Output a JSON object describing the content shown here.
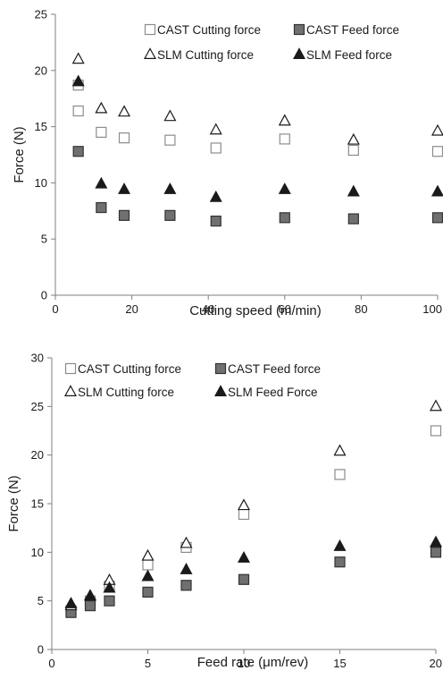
{
  "chart_data": [
    {
      "type": "scatter",
      "xlabel": "Cutting speed (m/min)",
      "ylabel": "Force (N)",
      "xlim": [
        0,
        100
      ],
      "ylim": [
        0,
        25
      ],
      "xticks": [
        0,
        20,
        40,
        60,
        80,
        100
      ],
      "yticks": [
        0,
        5,
        10,
        15,
        20,
        25
      ],
      "xtick_labels": [
        "0",
        "20",
        "40",
        "60",
        "80",
        "100"
      ],
      "ytick_labels": [
        "0",
        "5",
        "10",
        "15",
        "20",
        "25"
      ],
      "grid": false,
      "legend_position": "top-right",
      "series": [
        {
          "name": "CAST Cutting force",
          "marker": "square-open",
          "color": "#8c8c8c",
          "points": [
            [
              6,
              18.7
            ],
            [
              6,
              16.4
            ],
            [
              12,
              14.5
            ],
            [
              18,
              14.0
            ],
            [
              30,
              13.8
            ],
            [
              42,
              13.1
            ],
            [
              60,
              13.9
            ],
            [
              78,
              12.9
            ],
            [
              100,
              12.8
            ]
          ]
        },
        {
          "name": "CAST Feed force",
          "marker": "square-filled",
          "color": "#707070",
          "points": [
            [
              6,
              12.8
            ],
            [
              12,
              7.8
            ],
            [
              18,
              7.1
            ],
            [
              30,
              7.1
            ],
            [
              42,
              6.6
            ],
            [
              60,
              6.9
            ],
            [
              78,
              6.8
            ],
            [
              100,
              6.9
            ]
          ]
        },
        {
          "name": "SLM Cutting force",
          "marker": "triangle-open",
          "color": "#1a1a1a",
          "points": [
            [
              6,
              21.0
            ],
            [
              12,
              16.6
            ],
            [
              18,
              16.3
            ],
            [
              30,
              15.9
            ],
            [
              42,
              14.7
            ],
            [
              60,
              15.5
            ],
            [
              78,
              13.8
            ],
            [
              100,
              14.6
            ]
          ]
        },
        {
          "name": "SLM Feed force",
          "marker": "triangle-filled",
          "color": "#1a1a1a",
          "points": [
            [
              6,
              19.0
            ],
            [
              12,
              9.9
            ],
            [
              18,
              9.4
            ],
            [
              30,
              9.4
            ],
            [
              42,
              8.7
            ],
            [
              60,
              9.4
            ],
            [
              78,
              9.2
            ],
            [
              100,
              9.2
            ]
          ]
        }
      ]
    },
    {
      "type": "scatter",
      "xlabel": "Feed rate (μm/rev)",
      "ylabel": "Force (N)",
      "xlim": [
        0,
        20
      ],
      "ylim": [
        0,
        30
      ],
      "xticks": [
        0,
        5,
        10,
        15,
        20
      ],
      "yticks": [
        0,
        5,
        10,
        15,
        20,
        25,
        30
      ],
      "xtick_labels": [
        "0",
        "5",
        "10",
        "15",
        "20"
      ],
      "ytick_labels": [
        "0",
        "5",
        "10",
        "15",
        "20",
        "25",
        "30"
      ],
      "grid": false,
      "legend_position": "top-left",
      "series": [
        {
          "name": "CAST Cutting force",
          "marker": "square-open",
          "color": "#8c8c8c",
          "points": [
            [
              1,
              4.0
            ],
            [
              2,
              5.0
            ],
            [
              3,
              6.5
            ],
            [
              5,
              8.7
            ],
            [
              7,
              10.5
            ],
            [
              10,
              13.9
            ],
            [
              15,
              18.0
            ],
            [
              20,
              22.5
            ]
          ]
        },
        {
          "name": "CAST Feed force",
          "marker": "square-filled",
          "color": "#707070",
          "points": [
            [
              1,
              3.8
            ],
            [
              2,
              4.5
            ],
            [
              3,
              5.0
            ],
            [
              5,
              5.9
            ],
            [
              7,
              6.6
            ],
            [
              10,
              7.2
            ],
            [
              15,
              9.0
            ],
            [
              20,
              10.0
            ]
          ]
        },
        {
          "name": "SLM Cutting force",
          "marker": "triangle-open",
          "color": "#1a1a1a",
          "points": [
            [
              1,
              4.5
            ],
            [
              2,
              5.5
            ],
            [
              3,
              7.1
            ],
            [
              5,
              9.6
            ],
            [
              7,
              10.9
            ],
            [
              10,
              14.8
            ],
            [
              15,
              20.4
            ],
            [
              20,
              25.0
            ]
          ]
        },
        {
          "name": "SLM Feed Force",
          "marker": "triangle-filled",
          "color": "#1a1a1a",
          "points": [
            [
              1,
              4.7
            ],
            [
              2,
              5.5
            ],
            [
              3,
              6.3
            ],
            [
              5,
              7.5
            ],
            [
              7,
              8.2
            ],
            [
              10,
              9.4
            ],
            [
              15,
              10.6
            ],
            [
              20,
              11.0
            ]
          ]
        }
      ]
    }
  ]
}
